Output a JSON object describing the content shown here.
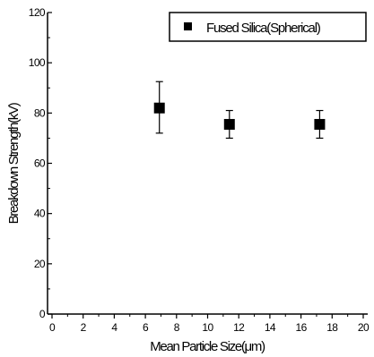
{
  "chart_data": {
    "type": "scatter",
    "title": "",
    "xlabel": "Mean Particle Size(μm)",
    "ylabel": "Breakdown Strength(kV)",
    "xlim": [
      0,
      20
    ],
    "ylim": [
      0,
      120
    ],
    "xticks": [
      0,
      2,
      4,
      6,
      8,
      10,
      12,
      14,
      16,
      18,
      20
    ],
    "yticks": [
      0,
      20,
      40,
      60,
      80,
      100,
      120
    ],
    "grid": false,
    "legend_position": "top-right",
    "series": [
      {
        "name": "Fused Silica(Spherical)",
        "marker": "square",
        "color": "#000000",
        "x": [
          6.9,
          11.4,
          17.2
        ],
        "y": [
          82,
          75.5,
          75.5
        ],
        "error_high": [
          92.5,
          81,
          81
        ],
        "error_low": [
          72,
          70,
          70
        ]
      }
    ]
  }
}
